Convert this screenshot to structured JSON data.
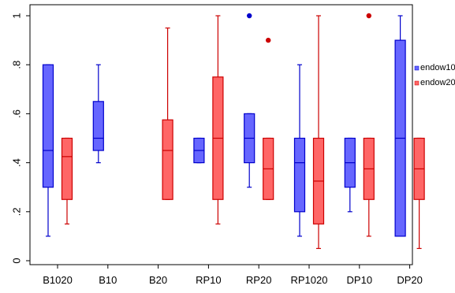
{
  "chart_data": {
    "type": "box",
    "categories": [
      "B1020",
      "B10",
      "B20",
      "RP10",
      "RP20",
      "RP1020",
      "DP10",
      "DP20"
    ],
    "y_ticks": [
      {
        "value": 0,
        "label": "0"
      },
      {
        "value": 0.2,
        "label": ".2"
      },
      {
        "value": 0.4,
        "label": ".4"
      },
      {
        "value": 0.6,
        "label": ".6"
      },
      {
        "value": 0.8,
        "label": ".8"
      },
      {
        "value": 1,
        "label": "1"
      }
    ],
    "ylim": [
      -0.04,
      1.04
    ],
    "grid": false,
    "legend_position": "right",
    "series": [
      {
        "name": "endow10",
        "color": "#6666ff",
        "edge_color": "#0000cc",
        "boxes": [
          {
            "category": "B1020",
            "min": 0.1,
            "q1": 0.3,
            "median": 0.45,
            "q3": 0.8,
            "max": 0.8,
            "outliers": []
          },
          {
            "category": "B10",
            "min": 0.4,
            "q1": 0.45,
            "median": 0.5,
            "q3": 0.65,
            "max": 0.8,
            "outliers": []
          },
          {
            "category": "RP10",
            "min": 0.4,
            "q1": 0.4,
            "median": 0.45,
            "q3": 0.5,
            "max": 0.5,
            "outliers": []
          },
          {
            "category": "RP20",
            "min": 0.3,
            "q1": 0.4,
            "median": 0.5,
            "q3": 0.6,
            "max": 0.6,
            "outliers": [
              1.0
            ]
          },
          {
            "category": "RP1020",
            "min": 0.1,
            "q1": 0.2,
            "median": 0.4,
            "q3": 0.5,
            "max": 0.8,
            "outliers": []
          },
          {
            "category": "DP10",
            "min": 0.2,
            "q1": 0.3,
            "median": 0.4,
            "q3": 0.5,
            "max": 0.5,
            "outliers": []
          },
          {
            "category": "DP20",
            "min": 0.1,
            "q1": 0.1,
            "median": 0.5,
            "q3": 0.9,
            "max": 1.0,
            "outliers": []
          }
        ]
      },
      {
        "name": "endow20",
        "color": "#ff6666",
        "edge_color": "#cc0000",
        "boxes": [
          {
            "category": "B1020",
            "min": 0.15,
            "q1": 0.25,
            "median": 0.425,
            "q3": 0.5,
            "max": 0.5,
            "outliers": []
          },
          {
            "category": "B20",
            "min": 0.25,
            "q1": 0.25,
            "median": 0.45,
            "q3": 0.575,
            "max": 0.95,
            "outliers": []
          },
          {
            "category": "RP10",
            "min": 0.15,
            "q1": 0.25,
            "median": 0.5,
            "q3": 0.75,
            "max": 1.0,
            "outliers": []
          },
          {
            "category": "RP20",
            "min": 0.25,
            "q1": 0.25,
            "median": 0.375,
            "q3": 0.5,
            "max": 0.5,
            "outliers": [
              0.9
            ]
          },
          {
            "category": "RP1020",
            "min": 0.05,
            "q1": 0.15,
            "median": 0.325,
            "q3": 0.5,
            "max": 1.0,
            "outliers": []
          },
          {
            "category": "DP10",
            "min": 0.1,
            "q1": 0.25,
            "median": 0.375,
            "q3": 0.5,
            "max": 0.5,
            "outliers": [
              1.0
            ]
          },
          {
            "category": "DP20",
            "min": 0.05,
            "q1": 0.25,
            "median": 0.375,
            "q3": 0.5,
            "max": 0.5,
            "outliers": []
          }
        ]
      }
    ]
  }
}
